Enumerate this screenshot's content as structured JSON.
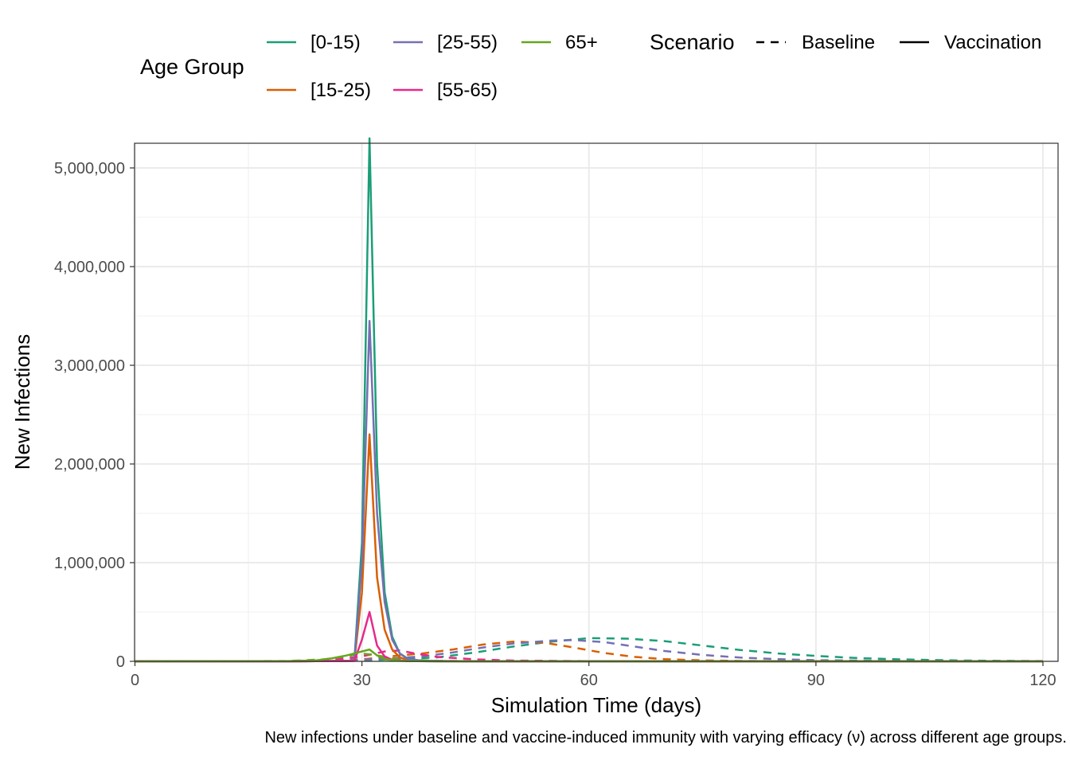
{
  "chart_data": {
    "type": "line",
    "xlabel": "Simulation Time (days)",
    "ylabel": "New Infections",
    "caption": "New infections under baseline and vaccine-induced immunity with varying efficacy (ν) across different age groups.",
    "xlim": [
      0,
      121
    ],
    "ylim": [
      0,
      5250000
    ],
    "x_ticks": [
      0,
      30,
      60,
      90,
      120
    ],
    "x_tick_labels": [
      "0",
      "30",
      "60",
      "90",
      "120"
    ],
    "y_ticks": [
      0,
      1000000,
      2000000,
      3000000,
      4000000,
      5000000
    ],
    "y_tick_labels": [
      "0",
      "1,000,000",
      "2,000,000",
      "3,000,000",
      "4,000,000",
      "5,000,000"
    ],
    "grid": true,
    "legend_position": "top",
    "legend": {
      "color_title": "Age Group",
      "linetype_title": "Scenario",
      "age_groups": [
        {
          "label": "[0-15)",
          "color": "#1B9E77"
        },
        {
          "label": "[15-25)",
          "color": "#D95F02"
        },
        {
          "label": "[25-55)",
          "color": "#7570B3"
        },
        {
          "label": "[55-65)",
          "color": "#E7298A"
        },
        {
          "label": "65+",
          "color": "#66A61E"
        }
      ],
      "scenarios": [
        {
          "label": "Baseline",
          "dash": "dashed"
        },
        {
          "label": "Vaccination",
          "dash": "solid"
        }
      ]
    },
    "series": [
      {
        "group": "[0-15)",
        "scenario": "Baseline",
        "color": "#1B9E77",
        "dashed": true,
        "points": [
          [
            0,
            0
          ],
          [
            20,
            2000
          ],
          [
            30,
            8000
          ],
          [
            35,
            25000
          ],
          [
            40,
            40000
          ],
          [
            45,
            90000
          ],
          [
            50,
            150000
          ],
          [
            55,
            200000
          ],
          [
            60,
            235000
          ],
          [
            65,
            230000
          ],
          [
            70,
            205000
          ],
          [
            75,
            160000
          ],
          [
            80,
            115000
          ],
          [
            85,
            80000
          ],
          [
            90,
            55000
          ],
          [
            95,
            35000
          ],
          [
            100,
            22000
          ],
          [
            105,
            14000
          ],
          [
            110,
            8000
          ],
          [
            115,
            5000
          ],
          [
            120,
            3000
          ]
        ]
      },
      {
        "group": "[15-25)",
        "scenario": "Baseline",
        "color": "#D95F02",
        "dashed": true,
        "points": [
          [
            0,
            0
          ],
          [
            20,
            2000
          ],
          [
            30,
            20000
          ],
          [
            35,
            60000
          ],
          [
            38,
            80000
          ],
          [
            42,
            120000
          ],
          [
            46,
            170000
          ],
          [
            50,
            200000
          ],
          [
            54,
            190000
          ],
          [
            58,
            140000
          ],
          [
            62,
            85000
          ],
          [
            66,
            45000
          ],
          [
            70,
            22000
          ],
          [
            75,
            10000
          ],
          [
            80,
            4000
          ],
          [
            90,
            1000
          ],
          [
            120,
            0
          ]
        ]
      },
      {
        "group": "[25-55)",
        "scenario": "Baseline",
        "color": "#7570B3",
        "dashed": true,
        "points": [
          [
            0,
            0
          ],
          [
            20,
            2000
          ],
          [
            30,
            15000
          ],
          [
            35,
            35000
          ],
          [
            38,
            50000
          ],
          [
            42,
            90000
          ],
          [
            46,
            140000
          ],
          [
            50,
            180000
          ],
          [
            55,
            210000
          ],
          [
            58,
            215000
          ],
          [
            62,
            195000
          ],
          [
            66,
            150000
          ],
          [
            70,
            105000
          ],
          [
            75,
            65000
          ],
          [
            80,
            38000
          ],
          [
            85,
            22000
          ],
          [
            90,
            12000
          ],
          [
            100,
            4000
          ],
          [
            120,
            500
          ]
        ]
      },
      {
        "group": "[55-65)",
        "scenario": "Baseline",
        "color": "#E7298A",
        "dashed": true,
        "points": [
          [
            0,
            0
          ],
          [
            25,
            3000
          ],
          [
            30,
            50000
          ],
          [
            33,
            100000
          ],
          [
            35,
            110000
          ],
          [
            37,
            80000
          ],
          [
            40,
            45000
          ],
          [
            45,
            20000
          ],
          [
            50,
            8000
          ],
          [
            60,
            2000
          ],
          [
            120,
            0
          ]
        ]
      },
      {
        "group": "65+",
        "scenario": "Baseline",
        "color": "#66A61E",
        "dashed": true,
        "points": [
          [
            0,
            0
          ],
          [
            20,
            3000
          ],
          [
            25,
            20000
          ],
          [
            28,
            50000
          ],
          [
            30,
            80000
          ],
          [
            32,
            60000
          ],
          [
            35,
            20000
          ],
          [
            40,
            5000
          ],
          [
            50,
            1000
          ],
          [
            120,
            0
          ]
        ]
      },
      {
        "group": "[0-15)",
        "scenario": "Vaccination",
        "color": "#1B9E77",
        "dashed": false,
        "points": [
          [
            0,
            0
          ],
          [
            20,
            0
          ],
          [
            29,
            5000
          ],
          [
            30,
            1200000
          ],
          [
            31,
            5300000
          ],
          [
            32,
            2000000
          ],
          [
            33,
            700000
          ],
          [
            34,
            250000
          ],
          [
            35,
            80000
          ],
          [
            36,
            30000
          ],
          [
            37,
            10000
          ],
          [
            40,
            2000
          ],
          [
            45,
            0
          ],
          [
            120,
            0
          ]
        ]
      },
      {
        "group": "[15-25)",
        "scenario": "Vaccination",
        "color": "#D95F02",
        "dashed": false,
        "points": [
          [
            0,
            0
          ],
          [
            20,
            0
          ],
          [
            29,
            5000
          ],
          [
            30,
            700000
          ],
          [
            31,
            2300000
          ],
          [
            32,
            850000
          ],
          [
            33,
            320000
          ],
          [
            34,
            120000
          ],
          [
            35,
            40000
          ],
          [
            36,
            15000
          ],
          [
            38,
            4000
          ],
          [
            45,
            0
          ],
          [
            120,
            0
          ]
        ]
      },
      {
        "group": "[25-55)",
        "scenario": "Vaccination",
        "color": "#7570B3",
        "dashed": false,
        "points": [
          [
            0,
            0
          ],
          [
            20,
            0
          ],
          [
            29,
            5000
          ],
          [
            30,
            1000000
          ],
          [
            31,
            3450000
          ],
          [
            32,
            1500000
          ],
          [
            33,
            600000
          ],
          [
            34,
            220000
          ],
          [
            35,
            80000
          ],
          [
            36,
            25000
          ],
          [
            38,
            6000
          ],
          [
            45,
            0
          ],
          [
            120,
            0
          ]
        ]
      },
      {
        "group": "[55-65)",
        "scenario": "Vaccination",
        "color": "#E7298A",
        "dashed": false,
        "points": [
          [
            0,
            0
          ],
          [
            20,
            0
          ],
          [
            29,
            5000
          ],
          [
            30,
            220000
          ],
          [
            31,
            500000
          ],
          [
            32,
            160000
          ],
          [
            33,
            50000
          ],
          [
            34,
            15000
          ],
          [
            36,
            3000
          ],
          [
            40,
            0
          ],
          [
            120,
            0
          ]
        ]
      },
      {
        "group": "65+",
        "scenario": "Vaccination",
        "color": "#66A61E",
        "dashed": false,
        "points": [
          [
            0,
            0
          ],
          [
            20,
            2000
          ],
          [
            24,
            10000
          ],
          [
            26,
            30000
          ],
          [
            28,
            60000
          ],
          [
            30,
            100000
          ],
          [
            31,
            120000
          ],
          [
            32,
            60000
          ],
          [
            33,
            20000
          ],
          [
            35,
            5000
          ],
          [
            40,
            0
          ],
          [
            120,
            0
          ]
        ]
      }
    ]
  }
}
